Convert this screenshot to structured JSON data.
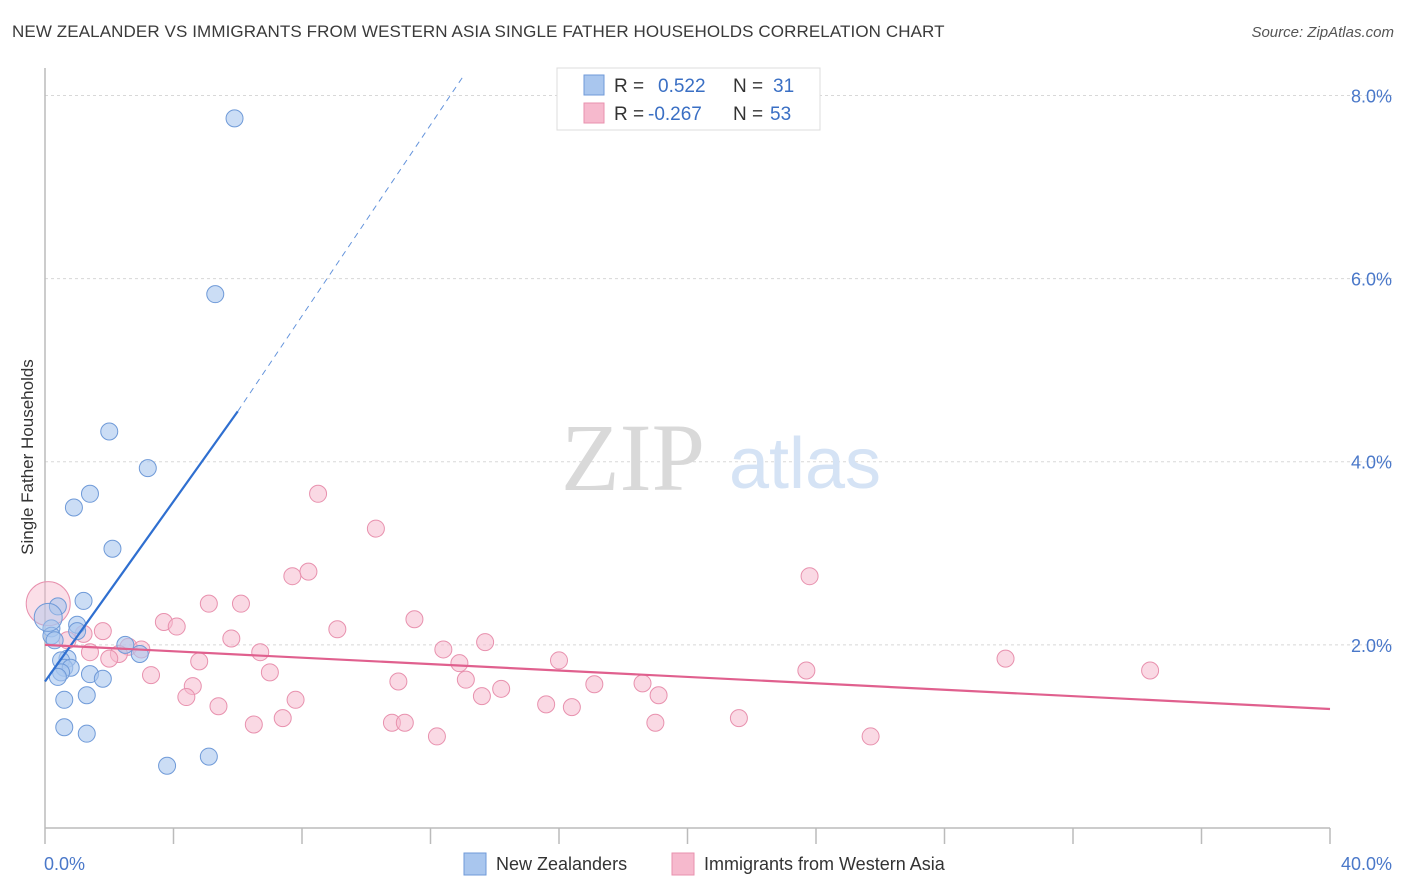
{
  "title": "NEW ZEALANDER VS IMMIGRANTS FROM WESTERN ASIA SINGLE FATHER HOUSEHOLDS CORRELATION CHART",
  "source": "Source: ZipAtlas.com",
  "watermark": {
    "zip": "ZIP",
    "atlas": "atlas"
  },
  "colors": {
    "blue_fill": "#a9c6ee",
    "blue_stroke": "#6f9ad8",
    "blue_line": "#2f6fd0",
    "pink_fill": "#f6b9cd",
    "pink_stroke": "#e891ae",
    "pink_line": "#e0608e",
    "grid": "#d8d8d8",
    "tick_text": "#4a78c9"
  },
  "legend": {
    "rows": [
      {
        "r_label": "R = ",
        "r_value": "0.522",
        "n_label": "N = ",
        "n_value": "31",
        "series": "blue"
      },
      {
        "r_label": "R = ",
        "r_value": "-0.267",
        "n_label": "N = ",
        "n_value": "53",
        "series": "pink"
      }
    ]
  },
  "chart_data": {
    "type": "scatter",
    "title": "NEW ZEALANDER VS IMMIGRANTS FROM WESTERN ASIA SINGLE FATHER HOUSEHOLDS CORRELATION CHART",
    "xlabel": "",
    "ylabel": "Single Father Households",
    "xlim": [
      0,
      40
    ],
    "ylim": [
      0,
      8.3
    ],
    "x_tick_labels": [
      {
        "value": 0,
        "label": "0.0%"
      },
      {
        "value": 40,
        "label": "40.0%"
      }
    ],
    "y_tick_labels": [
      {
        "value": 2,
        "label": "2.0%"
      },
      {
        "value": 4,
        "label": "4.0%"
      },
      {
        "value": 6,
        "label": "6.0%"
      },
      {
        "value": 8,
        "label": "8.0%"
      }
    ],
    "grid": true,
    "legend_position": "top-center",
    "series": [
      {
        "name": "New Zealanders",
        "color": "#a9c6ee",
        "trend": {
          "x": [
            0,
            6.0
          ],
          "y": [
            1.6,
            4.55
          ],
          "dashed_to": [
            13.0,
            8.2
          ]
        },
        "points": [
          {
            "x": 5.9,
            "y": 7.75
          },
          {
            "x": 5.3,
            "y": 5.83
          },
          {
            "x": 2.0,
            "y": 4.33
          },
          {
            "x": 3.2,
            "y": 3.93
          },
          {
            "x": 1.4,
            "y": 3.65
          },
          {
            "x": 0.9,
            "y": 3.5
          },
          {
            "x": 2.1,
            "y": 3.05
          },
          {
            "x": 1.2,
            "y": 2.48
          },
          {
            "x": 0.4,
            "y": 2.42
          },
          {
            "x": 0.2,
            "y": 2.18
          },
          {
            "x": 1.0,
            "y": 2.22
          },
          {
            "x": 0.2,
            "y": 2.1
          },
          {
            "x": 0.3,
            "y": 2.05
          },
          {
            "x": 1.0,
            "y": 2.15
          },
          {
            "x": 2.5,
            "y": 2.0
          },
          {
            "x": 2.95,
            "y": 1.9
          },
          {
            "x": 0.7,
            "y": 1.85
          },
          {
            "x": 0.5,
            "y": 1.83
          },
          {
            "x": 0.6,
            "y": 1.75
          },
          {
            "x": 0.8,
            "y": 1.75
          },
          {
            "x": 0.5,
            "y": 1.7
          },
          {
            "x": 0.4,
            "y": 1.65
          },
          {
            "x": 1.4,
            "y": 1.68
          },
          {
            "x": 1.8,
            "y": 1.63
          },
          {
            "x": 0.6,
            "y": 1.4
          },
          {
            "x": 1.3,
            "y": 1.45
          },
          {
            "x": 0.6,
            "y": 1.1
          },
          {
            "x": 1.3,
            "y": 1.03
          },
          {
            "x": 5.1,
            "y": 0.78
          },
          {
            "x": 3.8,
            "y": 0.68
          },
          {
            "x": 0.1,
            "y": 2.3
          }
        ]
      },
      {
        "name": "Immigrants from Western Asia",
        "color": "#f6b9cd",
        "trend": {
          "x": [
            0,
            40
          ],
          "y": [
            2.0,
            1.3
          ]
        },
        "points": [
          {
            "x": 8.5,
            "y": 3.65
          },
          {
            "x": 10.3,
            "y": 3.27
          },
          {
            "x": 8.2,
            "y": 2.8
          },
          {
            "x": 7.7,
            "y": 2.75
          },
          {
            "x": 23.8,
            "y": 2.75
          },
          {
            "x": 5.1,
            "y": 2.45
          },
          {
            "x": 6.1,
            "y": 2.45
          },
          {
            "x": 11.5,
            "y": 2.28
          },
          {
            "x": 3.7,
            "y": 2.25
          },
          {
            "x": 4.1,
            "y": 2.2
          },
          {
            "x": 9.1,
            "y": 2.17
          },
          {
            "x": 1.8,
            "y": 2.15
          },
          {
            "x": 1.2,
            "y": 2.12
          },
          {
            "x": 5.8,
            "y": 2.07
          },
          {
            "x": 0.7,
            "y": 2.05
          },
          {
            "x": 13.7,
            "y": 2.03
          },
          {
            "x": 2.6,
            "y": 1.98
          },
          {
            "x": 12.4,
            "y": 1.95
          },
          {
            "x": 3.0,
            "y": 1.95
          },
          {
            "x": 1.4,
            "y": 1.92
          },
          {
            "x": 6.7,
            "y": 1.92
          },
          {
            "x": 2.3,
            "y": 1.9
          },
          {
            "x": 2.0,
            "y": 1.85
          },
          {
            "x": 16.0,
            "y": 1.83
          },
          {
            "x": 29.9,
            "y": 1.85
          },
          {
            "x": 4.8,
            "y": 1.82
          },
          {
            "x": 12.9,
            "y": 1.8
          },
          {
            "x": 34.4,
            "y": 1.72
          },
          {
            "x": 7.0,
            "y": 1.7
          },
          {
            "x": 3.3,
            "y": 1.67
          },
          {
            "x": 23.7,
            "y": 1.72
          },
          {
            "x": 13.1,
            "y": 1.62
          },
          {
            "x": 18.6,
            "y": 1.58
          },
          {
            "x": 11.0,
            "y": 1.6
          },
          {
            "x": 14.2,
            "y": 1.52
          },
          {
            "x": 4.6,
            "y": 1.55
          },
          {
            "x": 17.1,
            "y": 1.57
          },
          {
            "x": 19.1,
            "y": 1.45
          },
          {
            "x": 4.4,
            "y": 1.43
          },
          {
            "x": 7.8,
            "y": 1.4
          },
          {
            "x": 13.6,
            "y": 1.44
          },
          {
            "x": 5.4,
            "y": 1.33
          },
          {
            "x": 15.6,
            "y": 1.35
          },
          {
            "x": 16.4,
            "y": 1.32
          },
          {
            "x": 7.4,
            "y": 1.2
          },
          {
            "x": 21.6,
            "y": 1.2
          },
          {
            "x": 10.8,
            "y": 1.15
          },
          {
            "x": 11.2,
            "y": 1.15
          },
          {
            "x": 19.0,
            "y": 1.15
          },
          {
            "x": 6.5,
            "y": 1.13
          },
          {
            "x": 12.2,
            "y": 1.0
          },
          {
            "x": 25.7,
            "y": 1.0
          },
          {
            "x": 0.1,
            "y": 2.45
          }
        ]
      }
    ]
  }
}
